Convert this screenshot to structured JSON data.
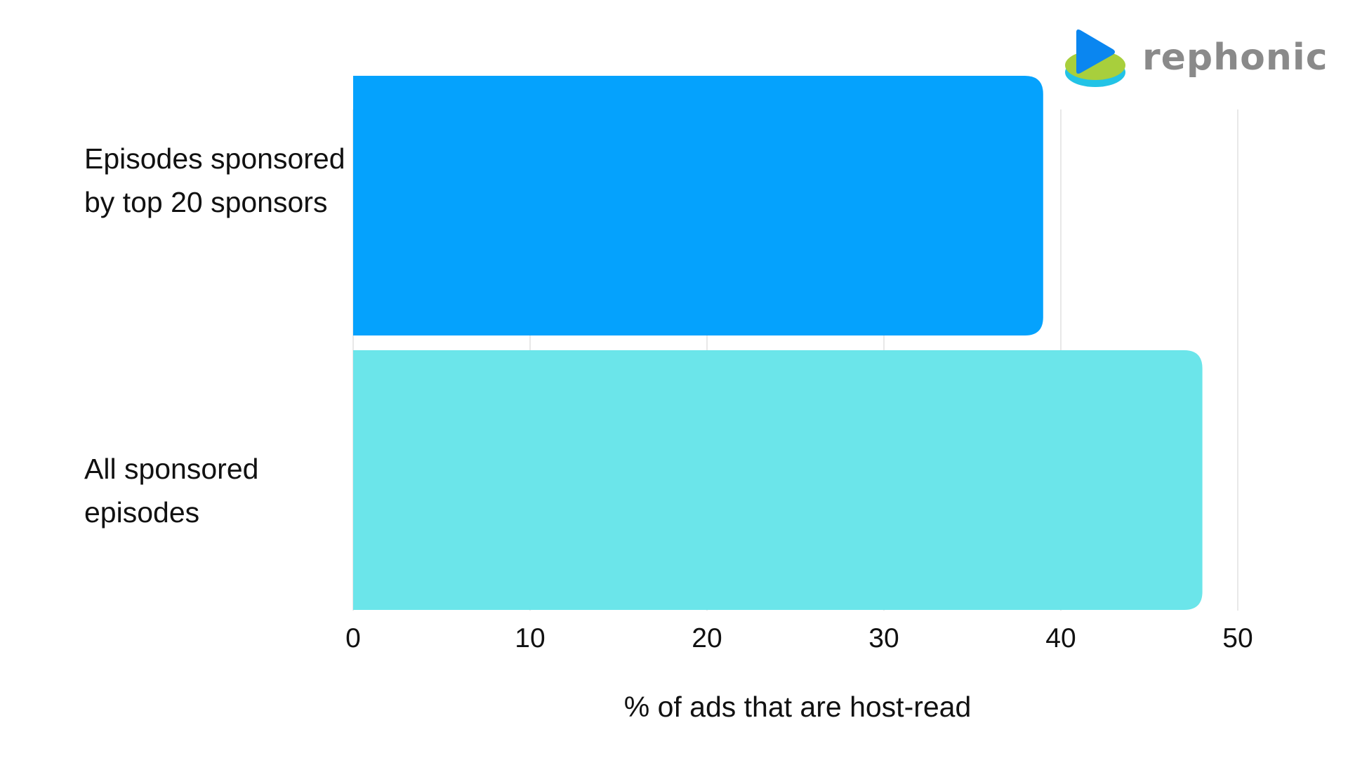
{
  "brand": {
    "name": "rephonic",
    "colors": {
      "play": "#0a86f0",
      "disc_top": "#a8cf3c",
      "disc_bottom": "#22c3e6"
    }
  },
  "chart_data": {
    "type": "bar",
    "orientation": "horizontal",
    "categories": [
      "Episodes sponsored by top 20 sponsors",
      "All sponsored episodes"
    ],
    "values": [
      39,
      48
    ],
    "colors": [
      "#05a2fd",
      "#6be5ea"
    ],
    "xlabel": "% of ads that are host-read",
    "xlim": [
      0,
      50
    ],
    "xticks": [
      0,
      10,
      20,
      30,
      40,
      50
    ],
    "grid": "vertical"
  }
}
